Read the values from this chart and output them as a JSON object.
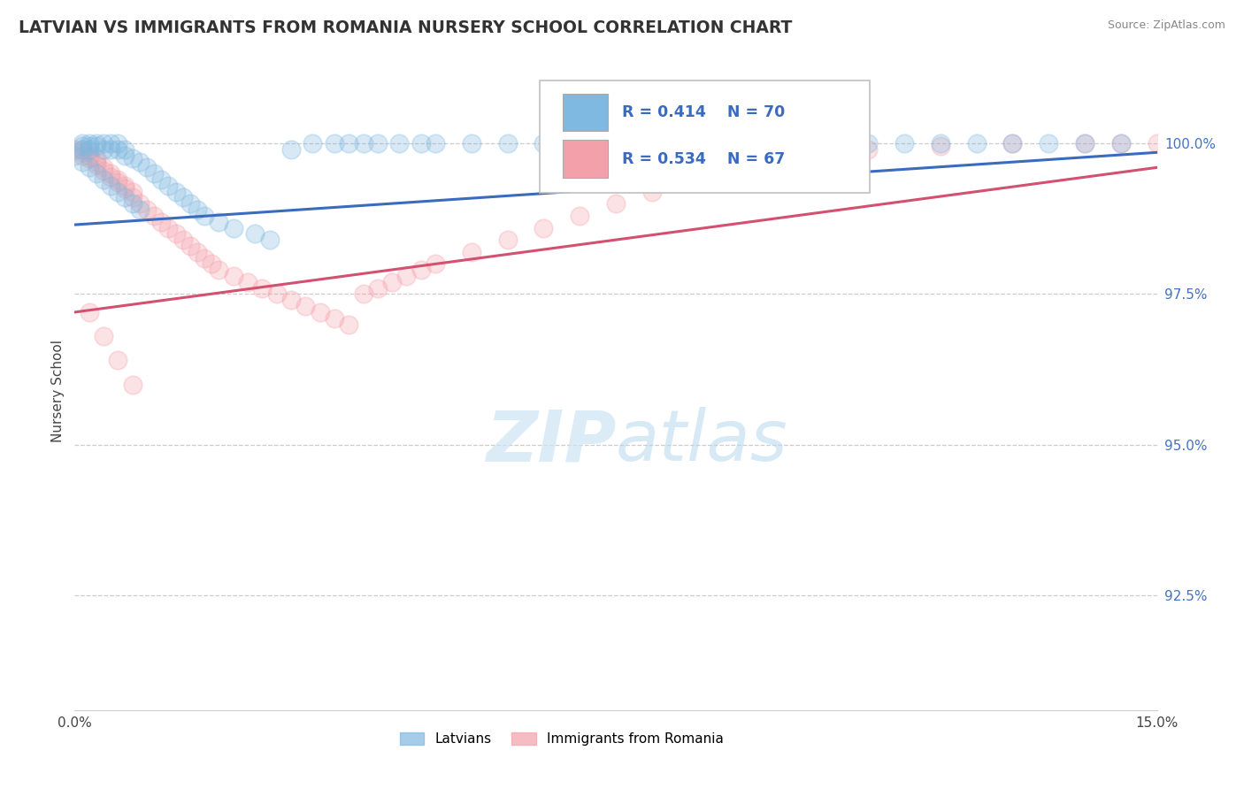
{
  "title": "LATVIAN VS IMMIGRANTS FROM ROMANIA NURSERY SCHOOL CORRELATION CHART",
  "source": "Source: ZipAtlas.com",
  "ylabel": "Nursery School",
  "ytick_labels": [
    "92.5%",
    "95.0%",
    "97.5%",
    "100.0%"
  ],
  "ytick_values": [
    0.925,
    0.95,
    0.975,
    1.0
  ],
  "xlim": [
    0.0,
    0.15
  ],
  "ylim": [
    0.906,
    1.012
  ],
  "legend_blue_r": "R = 0.414",
  "legend_blue_n": "N = 70",
  "legend_pink_r": "R = 0.534",
  "legend_pink_n": "N = 67",
  "blue_color": "#7fb8e0",
  "pink_color": "#f4a0aa",
  "blue_line_color": "#3a6bbf",
  "pink_line_color": "#d45070",
  "blue_trend_x": [
    0.0,
    0.15
  ],
  "blue_trend_y": [
    0.9865,
    0.9985
  ],
  "pink_trend_x": [
    0.0,
    0.15
  ],
  "pink_trend_y": [
    0.972,
    0.996
  ],
  "latvian_x": [
    0.001,
    0.001,
    0.001,
    0.002,
    0.002,
    0.002,
    0.003,
    0.003,
    0.004,
    0.004,
    0.005,
    0.005,
    0.006,
    0.006,
    0.007,
    0.007,
    0.008,
    0.009,
    0.01,
    0.011,
    0.012,
    0.013,
    0.014,
    0.015,
    0.016,
    0.017,
    0.018,
    0.02,
    0.022,
    0.025,
    0.027,
    0.03,
    0.033,
    0.036,
    0.038,
    0.04,
    0.042,
    0.045,
    0.048,
    0.05,
    0.055,
    0.06,
    0.065,
    0.068,
    0.07,
    0.075,
    0.08,
    0.085,
    0.09,
    0.095,
    0.1,
    0.105,
    0.11,
    0.115,
    0.12,
    0.125,
    0.13,
    0.135,
    0.14,
    0.145,
    0.0,
    0.001,
    0.002,
    0.003,
    0.004,
    0.005,
    0.006,
    0.007,
    0.008,
    0.009
  ],
  "latvian_y": [
    1.0,
    0.9995,
    0.999,
    1.0,
    0.9995,
    0.999,
    1.0,
    0.9995,
    1.0,
    0.999,
    1.0,
    0.999,
    1.0,
    0.999,
    0.999,
    0.998,
    0.9975,
    0.997,
    0.996,
    0.995,
    0.994,
    0.993,
    0.992,
    0.991,
    0.99,
    0.989,
    0.988,
    0.987,
    0.986,
    0.985,
    0.984,
    0.999,
    1.0,
    1.0,
    1.0,
    1.0,
    1.0,
    1.0,
    1.0,
    1.0,
    1.0,
    1.0,
    1.0,
    0.999,
    1.0,
    1.0,
    1.0,
    1.0,
    1.0,
    1.0,
    1.0,
    1.0,
    1.0,
    1.0,
    1.0,
    1.0,
    1.0,
    1.0,
    1.0,
    1.0,
    0.998,
    0.997,
    0.996,
    0.995,
    0.994,
    0.993,
    0.992,
    0.991,
    0.99,
    0.989
  ],
  "romania_x": [
    0.0,
    0.001,
    0.001,
    0.001,
    0.002,
    0.002,
    0.002,
    0.003,
    0.003,
    0.003,
    0.004,
    0.004,
    0.005,
    0.005,
    0.006,
    0.006,
    0.007,
    0.007,
    0.008,
    0.008,
    0.009,
    0.01,
    0.011,
    0.012,
    0.013,
    0.014,
    0.015,
    0.016,
    0.017,
    0.018,
    0.019,
    0.02,
    0.022,
    0.024,
    0.026,
    0.028,
    0.03,
    0.032,
    0.034,
    0.036,
    0.038,
    0.04,
    0.042,
    0.044,
    0.046,
    0.048,
    0.05,
    0.055,
    0.06,
    0.065,
    0.07,
    0.075,
    0.08,
    0.085,
    0.09,
    0.095,
    0.1,
    0.11,
    0.12,
    0.13,
    0.14,
    0.145,
    0.15,
    0.002,
    0.004,
    0.006,
    0.008
  ],
  "romania_y": [
    0.999,
    0.999,
    0.9985,
    0.998,
    0.9985,
    0.998,
    0.9975,
    0.9975,
    0.997,
    0.9965,
    0.996,
    0.9955,
    0.995,
    0.9945,
    0.994,
    0.9935,
    0.993,
    0.9925,
    0.992,
    0.991,
    0.99,
    0.989,
    0.988,
    0.987,
    0.986,
    0.985,
    0.984,
    0.983,
    0.982,
    0.981,
    0.98,
    0.979,
    0.978,
    0.977,
    0.976,
    0.975,
    0.974,
    0.973,
    0.972,
    0.971,
    0.97,
    0.975,
    0.976,
    0.977,
    0.978,
    0.979,
    0.98,
    0.982,
    0.984,
    0.986,
    0.988,
    0.99,
    0.992,
    0.994,
    0.996,
    0.997,
    0.998,
    0.999,
    0.9995,
    1.0,
    1.0,
    1.0,
    1.0,
    0.972,
    0.968,
    0.964,
    0.96
  ]
}
